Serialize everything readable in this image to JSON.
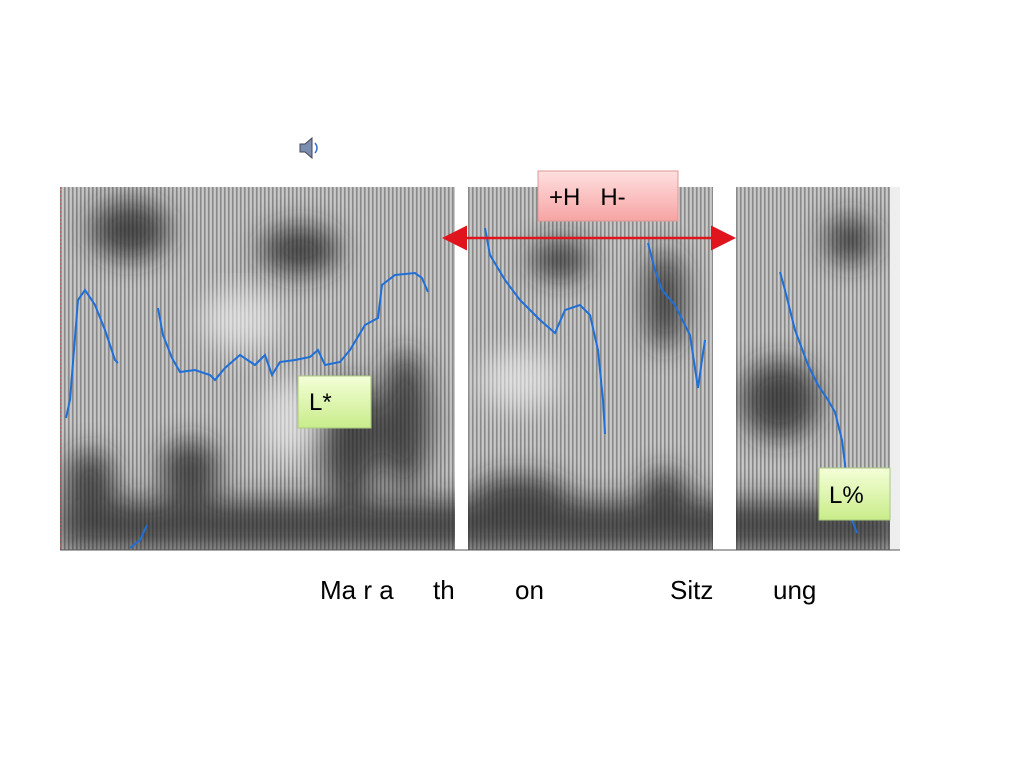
{
  "labels": {
    "phrase_accent": "+H   H-",
    "pitch_accent": "L*",
    "boundary_tone": "L%"
  },
  "words": [
    "Ma r a",
    "th",
    "on",
    "Sitz",
    "ung"
  ]
}
